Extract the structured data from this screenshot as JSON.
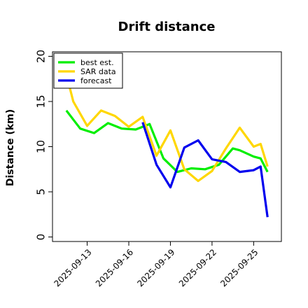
{
  "chart_data": {
    "type": "line",
    "title": "Drift distance",
    "xlabel": "",
    "ylabel": "Distance (km)",
    "xlim": [
      "2025-09-10T12:00",
      "2025-09-27T00:00"
    ],
    "ylim": [
      -0.5,
      20.5
    ],
    "yticks": [
      0,
      5,
      10,
      15,
      20
    ],
    "xticks": [
      {
        "date": "2025-09-13",
        "label": "2025-09-13"
      },
      {
        "date": "2025-09-16",
        "label": "2025-09-16"
      },
      {
        "date": "2025-09-19",
        "label": "2025-09-19"
      },
      {
        "date": "2025-09-22",
        "label": "2025-09-22"
      },
      {
        "date": "2025-09-25",
        "label": "2025-09-25"
      }
    ],
    "grid": false,
    "legend_position": "top-left",
    "series": [
      {
        "name": "best est.",
        "color": "#00ee00",
        "points": [
          [
            "2025-09-11T12:00",
            14.0
          ],
          [
            "2025-09-12T00:00",
            13.0
          ],
          [
            "2025-09-12T12:00",
            12.0
          ],
          [
            "2025-09-13T12:00",
            11.5
          ],
          [
            "2025-09-14T12:00",
            12.6
          ],
          [
            "2025-09-15T12:00",
            12.0
          ],
          [
            "2025-09-16T12:00",
            11.9
          ],
          [
            "2025-09-17T12:00",
            12.5
          ],
          [
            "2025-09-18T12:00",
            8.7
          ],
          [
            "2025-09-19T12:00",
            7.2
          ],
          [
            "2025-09-20T12:00",
            7.6
          ],
          [
            "2025-09-21T12:00",
            7.5
          ],
          [
            "2025-09-22T12:00",
            8.0
          ],
          [
            "2025-09-23T12:00",
            9.8
          ],
          [
            "2025-09-24T00:00",
            9.6
          ],
          [
            "2025-09-25T00:00",
            8.9
          ],
          [
            "2025-09-25T12:00",
            8.7
          ],
          [
            "2025-09-26T00:00",
            7.2
          ]
        ]
      },
      {
        "name": "SAR data",
        "color": "#ffd700",
        "points": [
          [
            "2025-09-11T12:00",
            18.0
          ],
          [
            "2025-09-12T00:00",
            15.0
          ],
          [
            "2025-09-13T00:00",
            12.3
          ],
          [
            "2025-09-14T00:00",
            14.0
          ],
          [
            "2025-09-15T00:00",
            13.4
          ],
          [
            "2025-09-16T00:00",
            12.2
          ],
          [
            "2025-09-17T00:00",
            13.3
          ],
          [
            "2025-09-18T00:00",
            9.0
          ],
          [
            "2025-09-19T00:00",
            11.8
          ],
          [
            "2025-09-20T00:00",
            7.5
          ],
          [
            "2025-09-21T00:00",
            6.2
          ],
          [
            "2025-09-22T00:00",
            7.3
          ],
          [
            "2025-09-23T00:00",
            9.8
          ],
          [
            "2025-09-24T00:00",
            12.1
          ],
          [
            "2025-09-25T00:00",
            10.0
          ],
          [
            "2025-09-25T12:00",
            10.3
          ],
          [
            "2025-09-26T00:00",
            7.8
          ]
        ]
      },
      {
        "name": "forecast",
        "color": "#0000ee",
        "points": [
          [
            "2025-09-17T00:00",
            12.7
          ],
          [
            "2025-09-18T00:00",
            8.0
          ],
          [
            "2025-09-19T00:00",
            5.5
          ],
          [
            "2025-09-20T00:00",
            9.9
          ],
          [
            "2025-09-21T00:00",
            10.7
          ],
          [
            "2025-09-22T00:00",
            8.6
          ],
          [
            "2025-09-23T00:00",
            8.3
          ],
          [
            "2025-09-24T00:00",
            7.2
          ],
          [
            "2025-09-25T00:00",
            7.4
          ],
          [
            "2025-09-25T12:00",
            7.8
          ],
          [
            "2025-09-26T00:00",
            2.2
          ]
        ]
      }
    ]
  }
}
